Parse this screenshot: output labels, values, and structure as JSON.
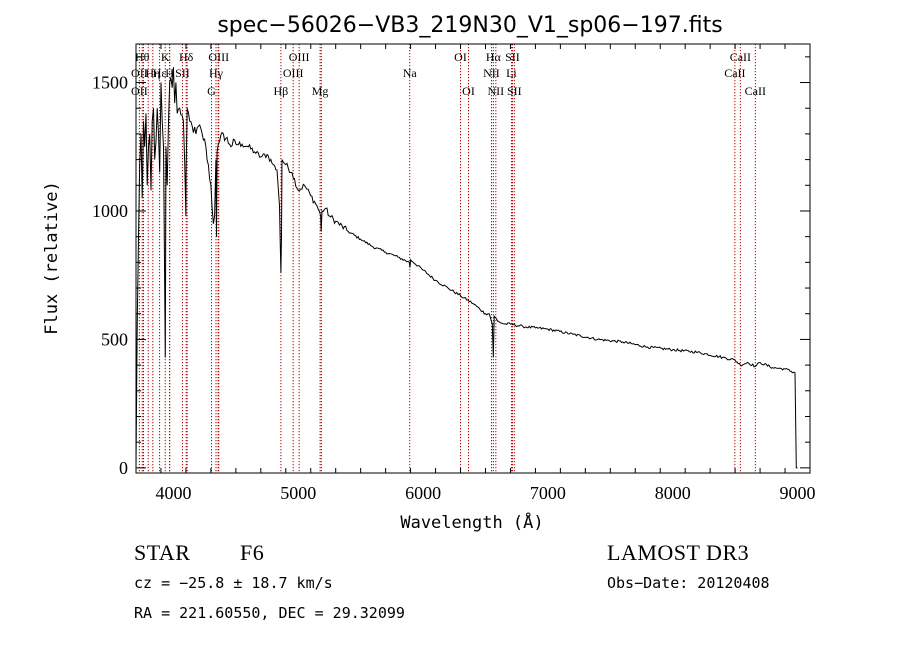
{
  "chart_data": {
    "type": "line",
    "title": "spec−56026−VB3_219N30_V1_sp06−197.fits",
    "xlabel": "Wavelength (Å)",
    "ylabel": "Flux (relative)",
    "xlim": [
      3700,
      9100
    ],
    "ylim": [
      -20,
      1650
    ],
    "x_ticks": [
      4000,
      5000,
      6000,
      7000,
      8000,
      9000
    ],
    "y_ticks": [
      0,
      500,
      1000,
      1500
    ],
    "grid": false,
    "series": [
      {
        "name": "spectrum",
        "x": [
          3700,
          3710,
          3720,
          3730,
          3740,
          3750,
          3760,
          3770,
          3780,
          3790,
          3800,
          3810,
          3820,
          3830,
          3840,
          3850,
          3860,
          3870,
          3880,
          3890,
          3900,
          3910,
          3920,
          3930,
          3935,
          3940,
          3950,
          3960,
          3970,
          3980,
          3990,
          4000,
          4010,
          4020,
          4030,
          4050,
          4080,
          4100,
          4101,
          4110,
          4130,
          4150,
          4180,
          4200,
          4230,
          4260,
          4300,
          4320,
          4330,
          4340,
          4345,
          4350,
          4370,
          4400,
          4450,
          4500,
          4550,
          4600,
          4650,
          4700,
          4750,
          4800,
          4830,
          4850,
          4855,
          4861,
          4866,
          4870,
          4900,
          4950,
          5000,
          5050,
          5100,
          5150,
          5180,
          5184,
          5190,
          5220,
          5250,
          5300,
          5400,
          5500,
          5600,
          5700,
          5800,
          5890,
          5895,
          5900,
          6000,
          6100,
          6200,
          6300,
          6400,
          6500,
          6530,
          6555,
          6563,
          6570,
          6600,
          6650,
          6700,
          6800,
          6900,
          7000,
          7200,
          7400,
          7600,
          7800,
          8000,
          8200,
          8400,
          8498,
          8542,
          8600,
          8662,
          8700,
          8800,
          8900,
          8980,
          8990,
          9000
        ],
        "values": [
          0,
          550,
          900,
          1180,
          1300,
          1050,
          1350,
          1250,
          1380,
          1100,
          1250,
          1300,
          1080,
          1350,
          1400,
          1200,
          1270,
          1400,
          1300,
          1150,
          1500,
          1350,
          1250,
          700,
          430,
          1250,
          1100,
          1350,
          1500,
          1520,
          1480,
          1560,
          1420,
          1500,
          1380,
          1400,
          1350,
          980,
          1150,
          1400,
          1350,
          1330,
          1300,
          1330,
          1300,
          1250,
          1100,
          950,
          980,
          1200,
          900,
          1230,
          1270,
          1300,
          1260,
          1260,
          1260,
          1250,
          1230,
          1210,
          1220,
          1180,
          1160,
          1020,
          880,
          760,
          900,
          1200,
          1180,
          1150,
          1080,
          1100,
          1060,
          1020,
          980,
          920,
          1000,
          1010,
          980,
          960,
          920,
          890,
          860,
          840,
          820,
          800,
          780,
          810,
          770,
          730,
          700,
          670,
          640,
          600,
          600,
          560,
          430,
          590,
          570,
          560,
          560,
          550,
          545,
          540,
          520,
          500,
          490,
          470,
          460,
          450,
          430,
          420,
          400,
          410,
          395,
          410,
          390,
          385,
          370,
          0,
          0
        ],
        "color": "#000000"
      }
    ],
    "spectral_lines": [
      {
        "label": "Hθ",
        "x": 3750,
        "row": 0
      },
      {
        "label": "OII",
        "x": 3727,
        "row": 1
      },
      {
        "label": "OII",
        "x": 3727,
        "row": 2
      },
      {
        "label": "Hη",
        "x": 3835,
        "row": 1
      },
      {
        "label": "Hε",
        "x": 3889,
        "row": 1
      },
      {
        "label": "H",
        "x": 3969,
        "row": 1
      },
      {
        "label": "K",
        "x": 3934,
        "row": 0
      },
      {
        "label": "Hδ",
        "x": 4102,
        "row": 0
      },
      {
        "label": "SII",
        "x": 4072,
        "row": 1
      },
      {
        "label": "OIII",
        "x": 4363,
        "row": 0
      },
      {
        "label": "Hγ",
        "x": 4341,
        "row": 1
      },
      {
        "label": "G",
        "x": 4305,
        "row": 2
      },
      {
        "label": "Hβ",
        "x": 4861,
        "row": 2
      },
      {
        "label": "OIII",
        "x": 5007,
        "row": 0
      },
      {
        "label": "OIII",
        "x": 4959,
        "row": 1
      },
      {
        "label": "Mg",
        "x": 5175,
        "row": 2
      },
      {
        "label": "Na",
        "x": 5893,
        "row": 1
      },
      {
        "label": "OI",
        "x": 6300,
        "row": 0
      },
      {
        "label": "OI",
        "x": 6364,
        "row": 2
      },
      {
        "label": "Hα",
        "x": 6563,
        "row": 0
      },
      {
        "label": "SII",
        "x": 6716,
        "row": 0
      },
      {
        "label": "NII",
        "x": 6548,
        "row": 1
      },
      {
        "label": "Li",
        "x": 6708,
        "row": 1
      },
      {
        "label": "NII",
        "x": 6583,
        "row": 2
      },
      {
        "label": "SII",
        "x": 6731,
        "row": 2
      },
      {
        "label": "CaII",
        "x": 8542,
        "row": 0
      },
      {
        "label": "CaII",
        "x": 8498,
        "row": 1
      },
      {
        "label": "CaII",
        "x": 8662,
        "row": 2
      }
    ],
    "extra_line_marks": [
      3760,
      3798,
      3970,
      4110,
      4358,
      5185
    ]
  },
  "footer": {
    "object_type": "STAR",
    "subclass": "F6",
    "survey": "LAMOST DR3",
    "cz": "cz = −25.8 ± 18.7 km/s",
    "obs_date": "Obs−Date: 20120408",
    "coords": "RA = 221.60550, DEC =  29.32099"
  }
}
